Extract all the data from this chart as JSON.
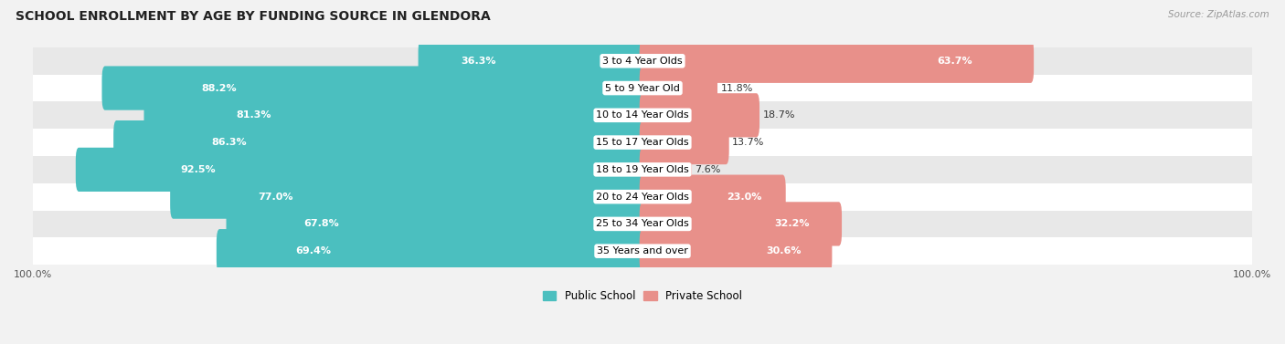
{
  "title": "SCHOOL ENROLLMENT BY AGE BY FUNDING SOURCE IN GLENDORA",
  "source": "Source: ZipAtlas.com",
  "categories": [
    "3 to 4 Year Olds",
    "5 to 9 Year Old",
    "10 to 14 Year Olds",
    "15 to 17 Year Olds",
    "18 to 19 Year Olds",
    "20 to 24 Year Olds",
    "25 to 34 Year Olds",
    "35 Years and over"
  ],
  "public_values": [
    36.3,
    88.2,
    81.3,
    86.3,
    92.5,
    77.0,
    67.8,
    69.4
  ],
  "private_values": [
    63.7,
    11.8,
    18.7,
    13.7,
    7.6,
    23.0,
    32.2,
    30.6
  ],
  "public_color": "#4BBFBF",
  "private_color": "#E8908A",
  "bg_color": "#f2f2f2",
  "row_colors": [
    "#e8e8e8",
    "#ffffff"
  ],
  "bar_height": 0.62,
  "title_fontsize": 10,
  "label_fontsize": 8,
  "value_fontsize": 8,
  "legend_fontsize": 8.5,
  "source_fontsize": 7.5
}
